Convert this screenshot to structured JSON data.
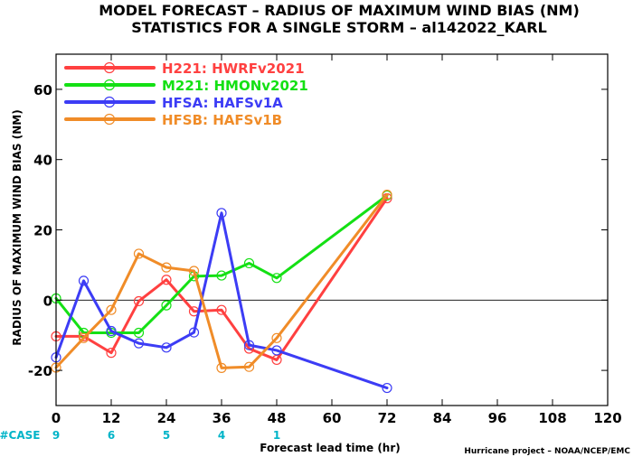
{
  "chart_data": {
    "type": "line",
    "title_line1": "MODEL FORECAST – RADIUS OF MAXIMUM WIND BIAS (NM)",
    "title_line2": "STATISTICS FOR A SINGLE STORM – al142022_KARL",
    "xlabel": "Forecast lead time (hr)",
    "ylabel": "RADIUS OF MAXIMUM WIND BIAS (NM)",
    "credit": "Hurricane project – NOAA/NCEP/EMC",
    "xlim": [
      0,
      120
    ],
    "ylim": [
      -30,
      70
    ],
    "xticks": [
      0,
      12,
      24,
      36,
      48,
      60,
      72,
      84,
      96,
      108,
      120
    ],
    "yticks": [
      -20,
      0,
      20,
      40,
      60
    ],
    "case_label": "#CASE",
    "cases": [
      {
        "x": 0,
        "n": "9"
      },
      {
        "x": 12,
        "n": "6"
      },
      {
        "x": 24,
        "n": "5"
      },
      {
        "x": 36,
        "n": "4"
      },
      {
        "x": 48,
        "n": "1"
      }
    ],
    "series": [
      {
        "id": "H221",
        "sep": ":",
        "name": "HWRFv2021",
        "color": "#ff4040",
        "x": [
          0,
          6,
          12,
          18,
          24,
          30,
          36,
          42,
          48,
          72
        ],
        "y": [
          -10.3,
          -10.3,
          -15,
          -0.3,
          5.8,
          -3.2,
          -2.8,
          -13.8,
          -17,
          29
        ]
      },
      {
        "id": "M221",
        "sep": ":",
        "name": "HMONv2021",
        "color": "#14e014",
        "x": [
          0,
          6,
          12,
          18,
          24,
          30,
          36,
          42,
          48,
          72
        ],
        "y": [
          0.5,
          -9.3,
          -9.3,
          -9.3,
          -1.5,
          6.8,
          7,
          10.5,
          6.3,
          29.8
        ]
      },
      {
        "id": "HFSA",
        "sep": ":",
        "name": "HAFSv1A",
        "color": "#3c3cf5",
        "x": [
          0,
          6,
          12,
          18,
          24,
          30,
          36,
          42,
          48,
          72
        ],
        "y": [
          -16.3,
          5.5,
          -8.8,
          -12.3,
          -13.5,
          -9.2,
          24.8,
          -12.8,
          -14.3,
          -25
        ]
      },
      {
        "id": "HFSB",
        "sep": ":",
        "name": "HAFSv1B",
        "color": "#f08c28",
        "x": [
          0,
          6,
          12,
          18,
          24,
          30,
          36,
          42,
          48,
          72
        ],
        "y": [
          -19.2,
          -10.8,
          -2.8,
          13.2,
          9.3,
          8.3,
          -19.3,
          -19,
          -10.8,
          30
        ]
      }
    ]
  }
}
